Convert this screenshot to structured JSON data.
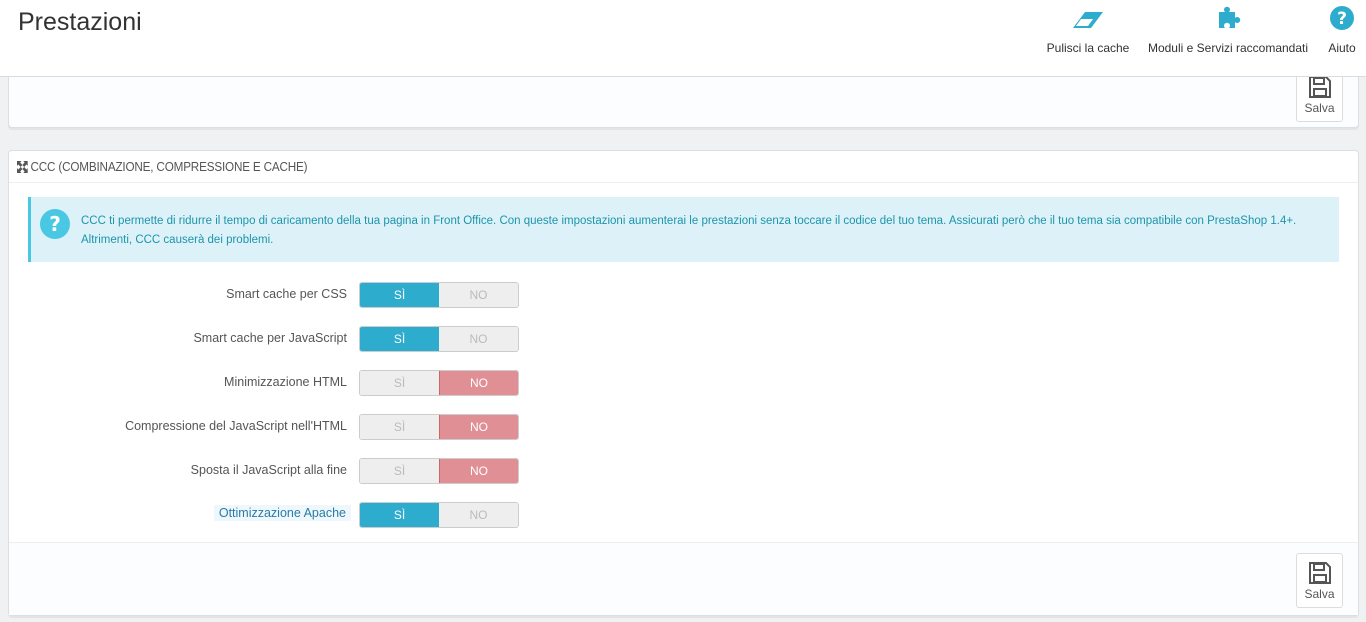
{
  "header": {
    "title": "Prestazioni",
    "toolbar": [
      {
        "label": "Pulisci la cache",
        "icon": "eraser-icon"
      },
      {
        "label": "Moduli e Servizi raccomandati",
        "icon": "puzzle-icon"
      },
      {
        "label": "Aiuto",
        "icon": "help-icon"
      }
    ]
  },
  "top_panel": {
    "save_label": "Salva"
  },
  "ccc_panel": {
    "title": "CCC (COMBINAZIONE, COMPRESSIONE E CACHE)",
    "alert": "CCC ti permette di ridurre il tempo di caricamento della tua pagina in Front Office. Con queste impostazioni aumenterai le prestazioni senza toccare il codice del tuo tema. Assicurati però che il tuo tema sia compatibile con PrestaShop 1.4+. Altrimenti, CCC causerà dei problemi.",
    "yes_label": "SÌ",
    "no_label": "NO",
    "options": [
      {
        "label": "Smart cache per CSS",
        "value": true
      },
      {
        "label": "Smart cache per JavaScript",
        "value": true
      },
      {
        "label": "Minimizzazione HTML",
        "value": false
      },
      {
        "label": "Compressione del JavaScript nell'HTML",
        "value": false
      },
      {
        "label": "Sposta il JavaScript alla fine",
        "value": false
      },
      {
        "label": "Ottimizzazione Apache",
        "value": true
      }
    ],
    "save_label": "Salva"
  },
  "colors": {
    "accent": "#2eacce",
    "no_active": "#e08f95",
    "alert_bg": "#dcf2f8"
  }
}
